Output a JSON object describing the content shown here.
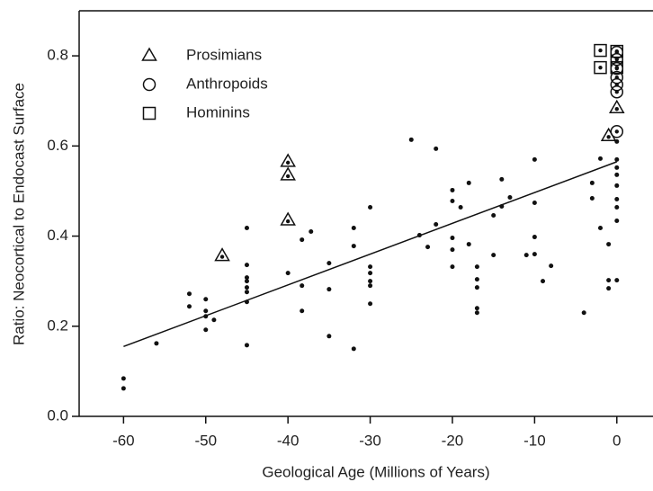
{
  "chart_data": {
    "type": "scatter",
    "x_label": "Geological Age (Millions of Years)",
    "y_label": "Ratio: Neocortical to Endocast Surface",
    "xlim": [
      -65.4,
      4.4
    ],
    "ylim": [
      0,
      0.9
    ],
    "xticks": [
      -60,
      -50,
      -40,
      -30,
      -20,
      -10,
      0
    ],
    "yticks": [
      {
        "value": 0,
        "label": "0.0"
      },
      {
        "value": 0.2,
        "label": "0.2"
      },
      {
        "value": 0.4,
        "label": "0.4"
      },
      {
        "value": 0.6,
        "label": "0.6"
      },
      {
        "value": 0.8,
        "label": "0.8"
      }
    ],
    "legend": "upper left",
    "color": "#111111",
    "x": [
      -60,
      -60,
      -56,
      -52,
      -52,
      -50,
      -50,
      -50,
      -50,
      -49,
      -45,
      -45,
      -45,
      -45,
      -45,
      -45,
      -45,
      -45,
      -40,
      -38.3,
      -38.3,
      -38.3,
      -37.2,
      -35,
      -35,
      -35,
      -32,
      -32,
      -32,
      -30,
      -30,
      -30,
      -30,
      -30,
      -30,
      -25,
      -24,
      -23,
      -22,
      -22,
      -20,
      -20,
      -20,
      -20,
      -20,
      -19,
      -18,
      -18,
      -17,
      -17,
      -17,
      -17,
      -17,
      -15,
      -15,
      -14,
      -14,
      -13,
      -11,
      -10,
      -10,
      -10,
      -10,
      -9,
      -8,
      -4,
      -3,
      -3,
      -2,
      -2,
      -1,
      -1,
      -1,
      0,
      0,
      0,
      0,
      0,
      0,
      0,
      0,
      0
    ],
    "y": [
      0.084,
      0.062,
      0.162,
      0.272,
      0.244,
      0.26,
      0.234,
      0.222,
      0.192,
      0.214,
      0.418,
      0.336,
      0.308,
      0.3,
      0.286,
      0.276,
      0.254,
      0.158,
      0.318,
      0.392,
      0.29,
      0.234,
      0.41,
      0.34,
      0.282,
      0.178,
      0.418,
      0.378,
      0.15,
      0.464,
      0.332,
      0.318,
      0.3,
      0.29,
      0.25,
      0.614,
      0.402,
      0.376,
      0.594,
      0.426,
      0.502,
      0.478,
      0.396,
      0.37,
      0.332,
      0.464,
      0.518,
      0.382,
      0.332,
      0.304,
      0.286,
      0.24,
      0.23,
      0.446,
      0.358,
      0.466,
      0.526,
      0.486,
      0.358,
      0.57,
      0.474,
      0.398,
      0.36,
      0.3,
      0.334,
      0.23,
      0.518,
      0.484,
      0.572,
      0.418,
      0.382,
      0.302,
      0.284,
      0.61,
      0.57,
      0.552,
      0.536,
      0.512,
      0.482,
      0.464,
      0.434,
      0.302
    ],
    "series": [
      {
        "name": "Prosimians",
        "marker": "triangle",
        "x": [
          -48,
          -40,
          -40,
          -40,
          -1,
          0
        ],
        "y": [
          0.356,
          0.565,
          0.535,
          0.435,
          0.622,
          0.684
        ]
      },
      {
        "name": "Anthropoids",
        "marker": "circle",
        "x": [
          0,
          0,
          0,
          0,
          0,
          0,
          0
        ],
        "y": [
          0.808,
          0.792,
          0.772,
          0.752,
          0.736,
          0.72,
          0.632
        ]
      },
      {
        "name": "Hominins",
        "marker": "square",
        "x": [
          -2,
          -2,
          0,
          0
        ],
        "y": [
          0.812,
          0.774,
          0.81,
          0.774
        ]
      }
    ],
    "trendline": {
      "x": [
        -60,
        0
      ],
      "y": [
        0.155,
        0.565
      ]
    }
  }
}
